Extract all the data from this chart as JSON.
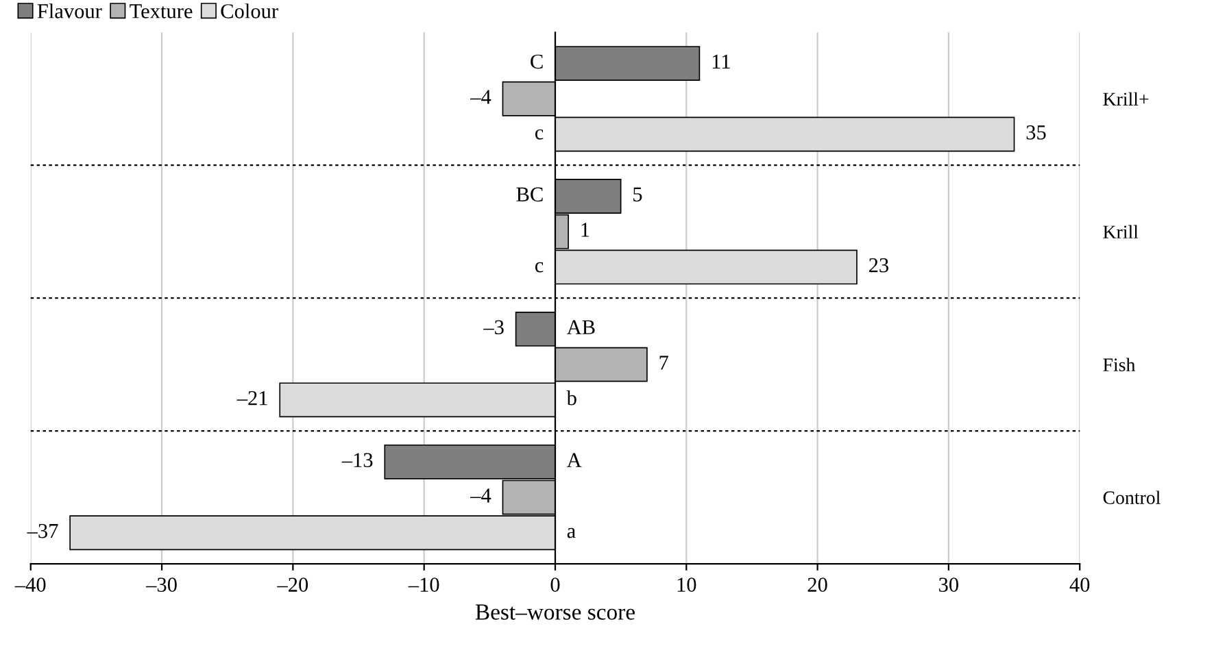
{
  "chart_data": {
    "type": "bar",
    "orientation": "horizontal",
    "xlabel": "Best–worse score",
    "categories": [
      "Krill+",
      "Krill",
      "Fish",
      "Control"
    ],
    "series": [
      {
        "name": "Flavour",
        "color": "#7f7f7f",
        "values": [
          11,
          5,
          -3,
          -13
        ],
        "value_labels": [
          "11",
          "5",
          "–3",
          "–13"
        ]
      },
      {
        "name": "Texture",
        "color": "#b3b3b3",
        "values": [
          -4,
          1,
          7,
          -4
        ],
        "value_labels": [
          "–4",
          "1",
          "7",
          "–4"
        ]
      },
      {
        "name": "Colour",
        "color": "#dcdcdc",
        "values": [
          35,
          23,
          -21,
          -37
        ],
        "value_labels": [
          "35",
          "23",
          "–21",
          "–37"
        ]
      }
    ],
    "xlim": [
      -40,
      40
    ],
    "xticks": [
      {
        "value": -40,
        "label": "–40"
      },
      {
        "value": -30,
        "label": "–30"
      },
      {
        "value": -20,
        "label": "–20"
      },
      {
        "value": -10,
        "label": "–10"
      },
      0,
      10,
      20,
      30,
      40
    ],
    "annotations": [
      "C",
      "c",
      "BC",
      "c",
      "AB",
      "b",
      "A",
      "a"
    ],
    "grid": true,
    "legend": "top left"
  }
}
